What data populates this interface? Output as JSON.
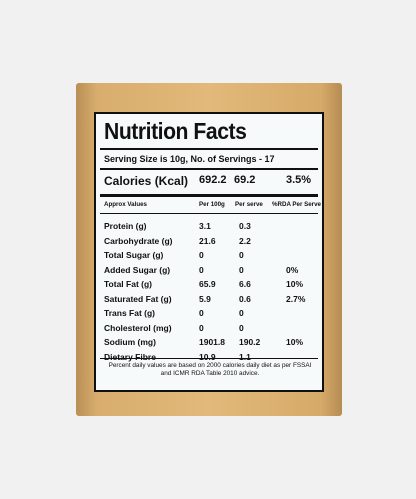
{
  "label": {
    "title": "Nutrition Facts",
    "serving": "Serving Size is 10g, No. of Servings - 17",
    "calories": {
      "label": "Calories (Kcal)",
      "per_100g": "692.2",
      "per_serve": "69.2",
      "rda": "3.5%"
    },
    "header": {
      "name": "Approx Values",
      "per_100g": "Per 100g",
      "per_serve": "Per serve",
      "rda": "%RDA Per Serve"
    },
    "rows": [
      {
        "name": "Protein (g)",
        "per_100g": "3.1",
        "per_serve": "0.3",
        "rda": ""
      },
      {
        "name": "Carbohydrate (g)",
        "per_100g": "21.6",
        "per_serve": "2.2",
        "rda": ""
      },
      {
        "name": "Total Sugar (g)",
        "per_100g": "0",
        "per_serve": "0",
        "rda": ""
      },
      {
        "name": "Added Sugar (g)",
        "per_100g": "0",
        "per_serve": "0",
        "rda": "0%"
      },
      {
        "name": "Total Fat (g)",
        "per_100g": "65.9",
        "per_serve": "6.6",
        "rda": "10%"
      },
      {
        "name": "Saturated Fat (g)",
        "per_100g": "5.9",
        "per_serve": "0.6",
        "rda": "2.7%"
      },
      {
        "name": "Trans Fat (g)",
        "per_100g": "0",
        "per_serve": "0",
        "rda": ""
      },
      {
        "name": "Cholesterol (mg)",
        "per_100g": "0",
        "per_serve": "0",
        "rda": ""
      },
      {
        "name": "Sodium (mg)",
        "per_100g": "1901.8",
        "per_serve": "190.2",
        "rda": "10%"
      },
      {
        "name": "Dietary Fibre",
        "per_100g": "10.9",
        "per_serve": "1.1",
        "rda": ""
      }
    ],
    "note": "Percent daily values are based on 2000 calories daily diet as per FSSAI and ICMR RDA Table 2010 advice."
  },
  "colors": {
    "background": "#f1f1f1",
    "package": "#dcb275",
    "label_bg": "#f7fafa",
    "ink": "#111111"
  }
}
